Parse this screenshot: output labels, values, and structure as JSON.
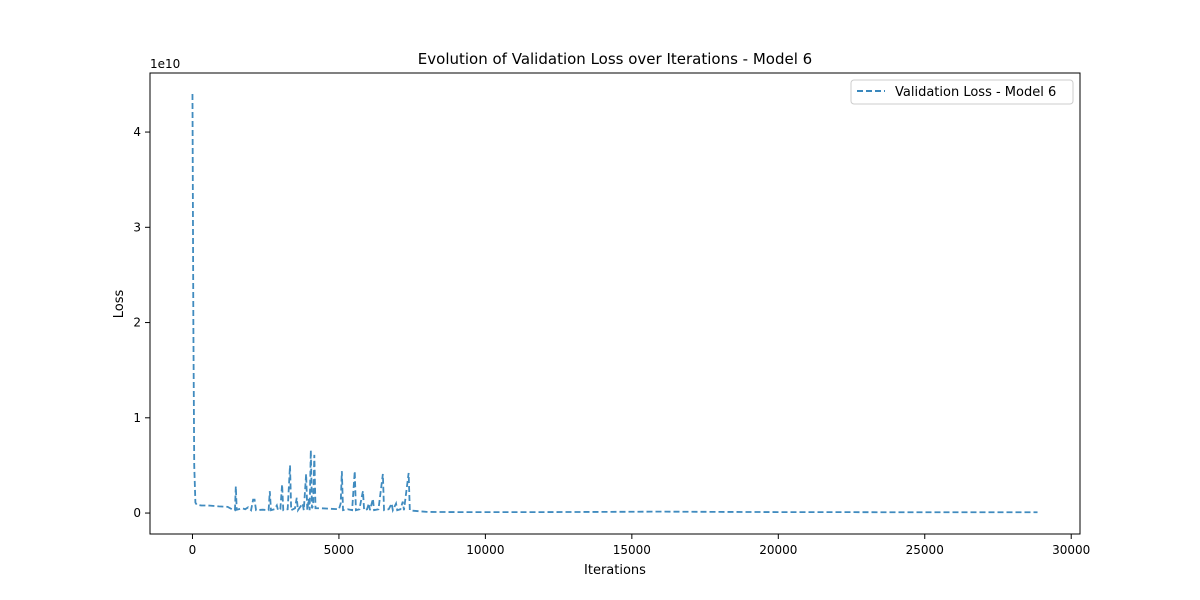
{
  "chart_data": {
    "type": "line",
    "title": "Evolution of Validation Loss over Iterations - Model 6",
    "xlabel": "Iterations",
    "ylabel": "Loss",
    "y_offset_text": "1e10",
    "xlim": [
      -1450,
      30300
    ],
    "ylim": [
      -2200000000,
      46200000000
    ],
    "x_ticks": [
      0,
      5000,
      10000,
      15000,
      20000,
      25000,
      30000
    ],
    "x_tick_labels": [
      "0",
      "5000",
      "10000",
      "15000",
      "20000",
      "25000",
      "30000"
    ],
    "y_ticks": [
      0,
      10000000000,
      20000000000,
      30000000000,
      40000000000
    ],
    "y_tick_labels": [
      "0",
      "1",
      "2",
      "3",
      "4"
    ],
    "grid": false,
    "legend_position": "top-right",
    "series": [
      {
        "name": "Validation Loss - Model 6",
        "color": "#1f77b4",
        "line_style": "dashed",
        "points": [
          [
            0,
            44000000000
          ],
          [
            30,
            20000000000
          ],
          [
            60,
            5000000000
          ],
          [
            100,
            1100000000
          ],
          [
            150,
            850000000
          ],
          [
            300,
            800000000
          ],
          [
            600,
            780000000
          ],
          [
            900,
            700000000
          ],
          [
            1200,
            650000000
          ],
          [
            1350,
            400000000
          ],
          [
            1450,
            300000000
          ],
          [
            1480,
            2800000000
          ],
          [
            1510,
            350000000
          ],
          [
            1700,
            500000000
          ],
          [
            1800,
            400000000
          ],
          [
            1900,
            600000000
          ],
          [
            2000,
            300000000
          ],
          [
            2070,
            1400000000
          ],
          [
            2120,
            1400000000
          ],
          [
            2170,
            300000000
          ],
          [
            2400,
            350000000
          ],
          [
            2600,
            300000000
          ],
          [
            2640,
            2300000000
          ],
          [
            2680,
            300000000
          ],
          [
            2800,
            400000000
          ],
          [
            2880,
            800000000
          ],
          [
            2920,
            300000000
          ],
          [
            3000,
            400000000
          ],
          [
            3060,
            3000000000
          ],
          [
            3100,
            300000000
          ],
          [
            3250,
            400000000
          ],
          [
            3330,
            5000000000
          ],
          [
            3370,
            300000000
          ],
          [
            3500,
            500000000
          ],
          [
            3560,
            1600000000
          ],
          [
            3600,
            300000000
          ],
          [
            3760,
            1000000000
          ],
          [
            3800,
            300000000
          ],
          [
            3880,
            4100000000
          ],
          [
            3920,
            300000000
          ],
          [
            3970,
            1500000000
          ],
          [
            4000,
            300000000
          ],
          [
            4040,
            6600000000
          ],
          [
            4080,
            500000000
          ],
          [
            4120,
            800000000
          ],
          [
            4160,
            6100000000
          ],
          [
            4200,
            500000000
          ],
          [
            4400,
            500000000
          ],
          [
            4700,
            450000000
          ],
          [
            5000,
            400000000
          ],
          [
            5060,
            1000000000
          ],
          [
            5100,
            4400000000
          ],
          [
            5140,
            300000000
          ],
          [
            5300,
            400000000
          ],
          [
            5450,
            300000000
          ],
          [
            5540,
            4400000000
          ],
          [
            5580,
            300000000
          ],
          [
            5700,
            400000000
          ],
          [
            5780,
            1700000000
          ],
          [
            5820,
            2300000000
          ],
          [
            5860,
            300000000
          ],
          [
            5960,
            400000000
          ],
          [
            6020,
            1000000000
          ],
          [
            6060,
            300000000
          ],
          [
            6160,
            1500000000
          ],
          [
            6200,
            300000000
          ],
          [
            6350,
            400000000
          ],
          [
            6500,
            4100000000
          ],
          [
            6540,
            300000000
          ],
          [
            6700,
            400000000
          ],
          [
            6800,
            1000000000
          ],
          [
            6840,
            300000000
          ],
          [
            6950,
            1000000000
          ],
          [
            6990,
            300000000
          ],
          [
            7100,
            400000000
          ],
          [
            7180,
            1200000000
          ],
          [
            7220,
            300000000
          ],
          [
            7380,
            4200000000
          ],
          [
            7420,
            300000000
          ],
          [
            7500,
            250000000
          ],
          [
            8000,
            120000000
          ],
          [
            9000,
            100000000
          ],
          [
            10000,
            100000000
          ],
          [
            12000,
            100000000
          ],
          [
            14000,
            120000000
          ],
          [
            16000,
            150000000
          ],
          [
            18000,
            120000000
          ],
          [
            20000,
            100000000
          ],
          [
            22000,
            100000000
          ],
          [
            24000,
            80000000
          ],
          [
            26000,
            80000000
          ],
          [
            28000,
            80000000
          ],
          [
            28850,
            80000000
          ]
        ]
      }
    ]
  }
}
